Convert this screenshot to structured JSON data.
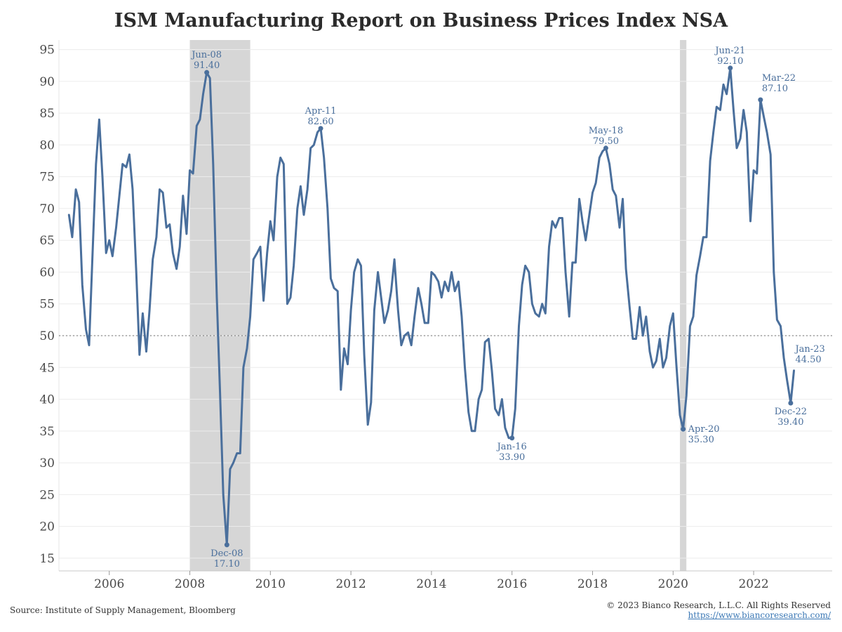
{
  "chart_data": {
    "type": "line",
    "title": "ISM Manufacturing Report on Business Prices Index NSA",
    "xlabel": "",
    "ylabel": "",
    "x_ticks": [
      "2006",
      "2008",
      "2010",
      "2012",
      "2014",
      "2016",
      "2018",
      "2020",
      "2022"
    ],
    "y_ticks": [
      "15",
      "20",
      "25",
      "30",
      "35",
      "40",
      "45",
      "50",
      "55",
      "60",
      "65",
      "70",
      "75",
      "80",
      "85",
      "90",
      "95"
    ],
    "xlim": [
      2004.75,
      2023.95
    ],
    "ylim": [
      13,
      96.5
    ],
    "reference_line": 50,
    "grid": "horizontal",
    "series": [
      {
        "color": "#4a6f9c",
        "points": [
          [
            2005.0,
            69
          ],
          [
            2005.08,
            65.5
          ],
          [
            2005.17,
            73
          ],
          [
            2005.25,
            71
          ],
          [
            2005.33,
            58
          ],
          [
            2005.42,
            51
          ],
          [
            2005.5,
            48.5
          ],
          [
            2005.58,
            62
          ],
          [
            2005.67,
            77
          ],
          [
            2005.75,
            84
          ],
          [
            2005.83,
            75
          ],
          [
            2005.92,
            63
          ],
          [
            2006.0,
            65
          ],
          [
            2006.08,
            62.5
          ],
          [
            2006.17,
            67
          ],
          [
            2006.25,
            72
          ],
          [
            2006.33,
            77
          ],
          [
            2006.42,
            76.5
          ],
          [
            2006.5,
            78.5
          ],
          [
            2006.58,
            73
          ],
          [
            2006.67,
            60
          ],
          [
            2006.75,
            47
          ],
          [
            2006.83,
            53.5
          ],
          [
            2006.92,
            47.5
          ],
          [
            2007.0,
            54
          ],
          [
            2007.08,
            62
          ],
          [
            2007.17,
            65.5
          ],
          [
            2007.25,
            73
          ],
          [
            2007.33,
            72.5
          ],
          [
            2007.42,
            67
          ],
          [
            2007.5,
            67.5
          ],
          [
            2007.58,
            63
          ],
          [
            2007.67,
            60.5
          ],
          [
            2007.75,
            64
          ],
          [
            2007.83,
            72
          ],
          [
            2007.92,
            66
          ],
          [
            2008.0,
            76
          ],
          [
            2008.08,
            75.5
          ],
          [
            2008.17,
            83
          ],
          [
            2008.25,
            84
          ],
          [
            2008.33,
            88
          ],
          [
            2008.42,
            91.4
          ],
          [
            2008.5,
            90.5
          ],
          [
            2008.58,
            77
          ],
          [
            2008.67,
            56
          ],
          [
            2008.75,
            41
          ],
          [
            2008.83,
            25
          ],
          [
            2008.92,
            17.1
          ],
          [
            2009.0,
            29
          ],
          [
            2009.08,
            30
          ],
          [
            2009.17,
            31.5
          ],
          [
            2009.25,
            31.5
          ],
          [
            2009.33,
            45
          ],
          [
            2009.42,
            48
          ],
          [
            2009.5,
            53
          ],
          [
            2009.58,
            62
          ],
          [
            2009.67,
            63
          ],
          [
            2009.75,
            64
          ],
          [
            2009.83,
            55.5
          ],
          [
            2009.92,
            63
          ],
          [
            2010.0,
            68
          ],
          [
            2010.08,
            65
          ],
          [
            2010.17,
            75
          ],
          [
            2010.25,
            78
          ],
          [
            2010.33,
            77
          ],
          [
            2010.42,
            55
          ],
          [
            2010.5,
            56
          ],
          [
            2010.58,
            61
          ],
          [
            2010.67,
            70
          ],
          [
            2010.75,
            73.5
          ],
          [
            2010.83,
            69
          ],
          [
            2010.92,
            73
          ],
          [
            2011.0,
            79.5
          ],
          [
            2011.08,
            80
          ],
          [
            2011.17,
            82
          ],
          [
            2011.25,
            82.6
          ],
          [
            2011.33,
            78
          ],
          [
            2011.42,
            70
          ],
          [
            2011.5,
            59
          ],
          [
            2011.58,
            57.5
          ],
          [
            2011.67,
            57
          ],
          [
            2011.75,
            41.5
          ],
          [
            2011.83,
            48
          ],
          [
            2011.92,
            45.5
          ],
          [
            2012.0,
            54
          ],
          [
            2012.08,
            60
          ],
          [
            2012.17,
            62
          ],
          [
            2012.25,
            61
          ],
          [
            2012.33,
            47
          ],
          [
            2012.42,
            36
          ],
          [
            2012.5,
            39.5
          ],
          [
            2012.58,
            54
          ],
          [
            2012.67,
            60
          ],
          [
            2012.75,
            56
          ],
          [
            2012.83,
            52
          ],
          [
            2012.92,
            54
          ],
          [
            2013.0,
            57
          ],
          [
            2013.08,
            62
          ],
          [
            2013.17,
            54
          ],
          [
            2013.25,
            48.5
          ],
          [
            2013.33,
            50
          ],
          [
            2013.42,
            50.5
          ],
          [
            2013.5,
            48.5
          ],
          [
            2013.58,
            53
          ],
          [
            2013.67,
            57.5
          ],
          [
            2013.75,
            55
          ],
          [
            2013.83,
            52
          ],
          [
            2013.92,
            52
          ],
          [
            2014.0,
            60
          ],
          [
            2014.08,
            59.5
          ],
          [
            2014.17,
            58.5
          ],
          [
            2014.25,
            56
          ],
          [
            2014.33,
            58.5
          ],
          [
            2014.42,
            57
          ],
          [
            2014.5,
            60
          ],
          [
            2014.58,
            57
          ],
          [
            2014.67,
            58.5
          ],
          [
            2014.75,
            53
          ],
          [
            2014.83,
            45
          ],
          [
            2014.92,
            38
          ],
          [
            2015.0,
            35
          ],
          [
            2015.08,
            35
          ],
          [
            2015.17,
            40
          ],
          [
            2015.25,
            41.5
          ],
          [
            2015.33,
            49
          ],
          [
            2015.42,
            49.5
          ],
          [
            2015.5,
            44.5
          ],
          [
            2015.58,
            38.5
          ],
          [
            2015.67,
            37.5
          ],
          [
            2015.75,
            40
          ],
          [
            2015.83,
            35.5
          ],
          [
            2015.92,
            33.9
          ],
          [
            2016.0,
            33.9
          ],
          [
            2016.08,
            38.5
          ],
          [
            2016.17,
            51.5
          ],
          [
            2016.25,
            58
          ],
          [
            2016.33,
            61
          ],
          [
            2016.42,
            60
          ],
          [
            2016.5,
            55
          ],
          [
            2016.58,
            53.5
          ],
          [
            2016.67,
            53
          ],
          [
            2016.75,
            55
          ],
          [
            2016.83,
            53.5
          ],
          [
            2016.92,
            64
          ],
          [
            2017.0,
            68
          ],
          [
            2017.08,
            67
          ],
          [
            2017.17,
            68.5
          ],
          [
            2017.25,
            68.5
          ],
          [
            2017.33,
            60
          ],
          [
            2017.42,
            53
          ],
          [
            2017.5,
            61.5
          ],
          [
            2017.58,
            61.5
          ],
          [
            2017.67,
            71.5
          ],
          [
            2017.75,
            68
          ],
          [
            2017.83,
            65
          ],
          [
            2017.92,
            69
          ],
          [
            2018.0,
            72.5
          ],
          [
            2018.08,
            74
          ],
          [
            2018.17,
            78
          ],
          [
            2018.25,
            79
          ],
          [
            2018.33,
            79.5
          ],
          [
            2018.42,
            77
          ],
          [
            2018.5,
            73
          ],
          [
            2018.58,
            72
          ],
          [
            2018.67,
            67
          ],
          [
            2018.75,
            71.5
          ],
          [
            2018.83,
            60.5
          ],
          [
            2018.92,
            54.5
          ],
          [
            2019.0,
            49.5
          ],
          [
            2019.08,
            49.5
          ],
          [
            2019.17,
            54.5
          ],
          [
            2019.25,
            50
          ],
          [
            2019.33,
            53
          ],
          [
            2019.42,
            47.5
          ],
          [
            2019.5,
            45
          ],
          [
            2019.58,
            46
          ],
          [
            2019.67,
            49.5
          ],
          [
            2019.75,
            45
          ],
          [
            2019.83,
            46.5
          ],
          [
            2019.92,
            51.5
          ],
          [
            2020.0,
            53.5
          ],
          [
            2020.08,
            45.5
          ],
          [
            2020.17,
            37.5
          ],
          [
            2020.25,
            35.3
          ],
          [
            2020.33,
            40.5
          ],
          [
            2020.42,
            51.5
          ],
          [
            2020.5,
            53
          ],
          [
            2020.58,
            59.5
          ],
          [
            2020.67,
            62.5
          ],
          [
            2020.75,
            65.5
          ],
          [
            2020.83,
            65.5
          ],
          [
            2020.92,
            77.5
          ],
          [
            2021.0,
            82
          ],
          [
            2021.08,
            86
          ],
          [
            2021.17,
            85.5
          ],
          [
            2021.25,
            89.5
          ],
          [
            2021.33,
            88
          ],
          [
            2021.42,
            92.1
          ],
          [
            2021.5,
            85.5
          ],
          [
            2021.58,
            79.5
          ],
          [
            2021.67,
            81
          ],
          [
            2021.75,
            85.5
          ],
          [
            2021.83,
            82
          ],
          [
            2021.92,
            68
          ],
          [
            2022.0,
            76
          ],
          [
            2022.08,
            75.5
          ],
          [
            2022.17,
            87.1
          ],
          [
            2022.25,
            84.5
          ],
          [
            2022.33,
            82
          ],
          [
            2022.42,
            78.5
          ],
          [
            2022.5,
            60
          ],
          [
            2022.58,
            52.5
          ],
          [
            2022.67,
            51.5
          ],
          [
            2022.75,
            46.5
          ],
          [
            2022.83,
            43
          ],
          [
            2022.92,
            39.4
          ],
          [
            2023.0,
            44.5
          ]
        ]
      }
    ],
    "shaded_regions": [
      [
        2008.0,
        2009.5
      ],
      [
        2020.17,
        2020.33
      ]
    ],
    "annotations": [
      {
        "x": 2008.42,
        "y": 91.4,
        "date": "Jun-08",
        "value": "91.40",
        "position": "above"
      },
      {
        "x": 2008.92,
        "y": 17.1,
        "date": "Dec-08",
        "value": "17.10",
        "position": "below"
      },
      {
        "x": 2011.25,
        "y": 82.6,
        "date": "Apr-11",
        "value": "82.60",
        "position": "above"
      },
      {
        "x": 2016.0,
        "y": 33.9,
        "date": "Jan-16",
        "value": "33.90",
        "position": "below"
      },
      {
        "x": 2018.33,
        "y": 79.5,
        "date": "May-18",
        "value": "79.50",
        "position": "above"
      },
      {
        "x": 2020.25,
        "y": 35.3,
        "date": "Apr-20",
        "value": "35.30",
        "position": "right"
      },
      {
        "x": 2021.42,
        "y": 92.1,
        "date": "Jun-21",
        "value": "92.10",
        "position": "above"
      },
      {
        "x": 2022.17,
        "y": 87.1,
        "date": "Mar-22",
        "value": "87.10",
        "position": "above-right"
      },
      {
        "x": 2022.92,
        "y": 39.4,
        "date": "Dec-22",
        "value": "39.40",
        "position": "below"
      },
      {
        "x": 2023.0,
        "y": 44.5,
        "date": "Jan-23",
        "value": "44.50",
        "position": "above-right",
        "marker": false
      }
    ]
  },
  "footer": {
    "source": "Source: Institute of Supply Management, Bloomberg",
    "copyright": "© 2023 Bianco Research, L.L.C. All Rights Reserved",
    "url": "https://www.biancoresearch.com/"
  }
}
